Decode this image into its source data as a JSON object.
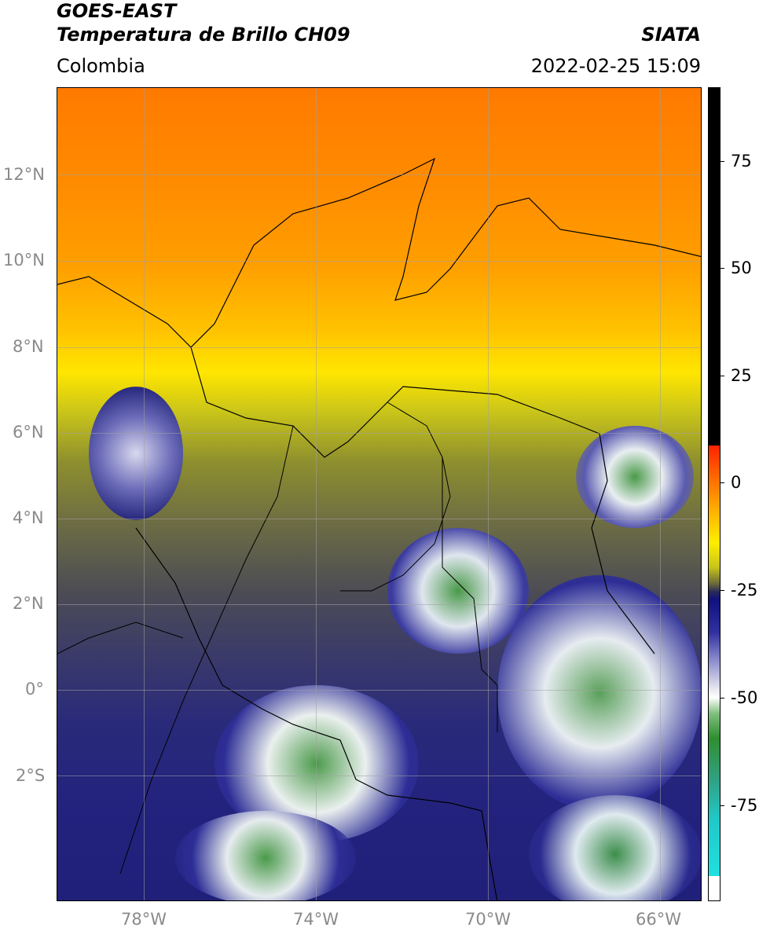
{
  "header": {
    "title_line1": "GOES-EAST",
    "title_line2": "Temperatura de Brillo CH09",
    "brand": "SIATA",
    "region": "Colombia",
    "datetime": "2022-02-25 15:09"
  },
  "map": {
    "lat_labels": [
      "12°N",
      "10°N",
      "8°N",
      "6°N",
      "4°N",
      "2°N",
      "0°",
      "2°S"
    ],
    "lon_labels": [
      "78°W",
      "74°W",
      "70°W",
      "66°W"
    ]
  },
  "colorbar": {
    "labels": [
      "75",
      "50",
      "25",
      "0",
      "-25",
      "-50",
      "-75"
    ]
  }
}
